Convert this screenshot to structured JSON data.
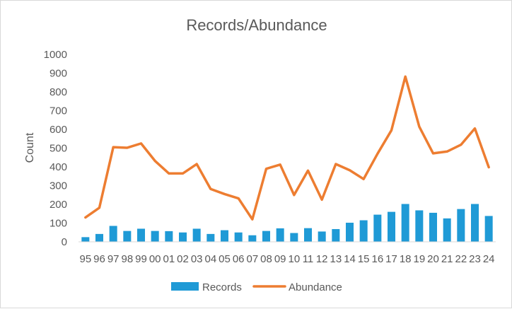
{
  "chart_data": {
    "type": "bar+line",
    "title": "Records/Abundance",
    "xlabel": "",
    "ylabel": "Count",
    "ylim": [
      0,
      1000
    ],
    "yticks": [
      0,
      100,
      200,
      300,
      400,
      500,
      600,
      700,
      800,
      900,
      1000
    ],
    "grid": false,
    "legend": "bottom",
    "categories": [
      "95",
      "96",
      "97",
      "98",
      "99",
      "00",
      "01",
      "02",
      "03",
      "04",
      "05",
      "06",
      "07",
      "08",
      "09",
      "10",
      "11",
      "12",
      "13",
      "14",
      "15",
      "16",
      "17",
      "18",
      "19",
      "20",
      "21",
      "22",
      "23",
      "24"
    ],
    "series": [
      {
        "name": "Records",
        "kind": "bar",
        "color": "#1f9ad6",
        "values": [
          25,
          42,
          85,
          58,
          70,
          58,
          57,
          50,
          70,
          42,
          62,
          50,
          35,
          58,
          72,
          47,
          73,
          55,
          68,
          102,
          115,
          145,
          160,
          202,
          168,
          155,
          125,
          175,
          202,
          138
        ]
      },
      {
        "name": "Abundance",
        "kind": "line",
        "color": "#ed7d31",
        "values": [
          130,
          182,
          505,
          502,
          525,
          432,
          365,
          365,
          415,
          282,
          255,
          232,
          120,
          390,
          412,
          250,
          380,
          225,
          415,
          382,
          335,
          470,
          595,
          882,
          615,
          472,
          482,
          518,
          605,
          398
        ]
      }
    ]
  }
}
